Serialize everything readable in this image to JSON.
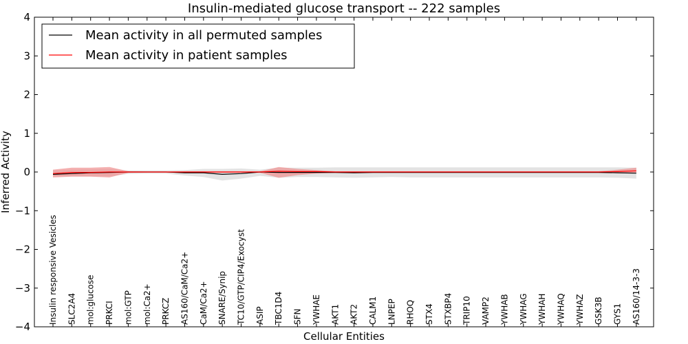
{
  "chart_data": {
    "type": "line",
    "title": "Insulin-mediated glucose transport -- 222 samples",
    "xlabel": "Cellular Entities",
    "ylabel": "Inferred Activity",
    "ylim": [
      -4,
      4
    ],
    "yticks": [
      -4,
      -3,
      -2,
      -1,
      0,
      1,
      2,
      3,
      4
    ],
    "ytick_labels": [
      "−4",
      "−3",
      "−2",
      "−1",
      "0",
      "1",
      "2",
      "3",
      "4"
    ],
    "grid": false,
    "legend_position": "top-left",
    "categories": [
      "Insulin responsive Vesicles",
      "SLC2A4",
      "mol:glucose",
      "PRKCI",
      "mol:GTP",
      "mol:Ca2+",
      "PRKCZ",
      "AS160/CaM/Ca2+",
      "CaM/Ca2+",
      "SNARE/Synip",
      "TC10/GTP/CIP4/Exocyst",
      "ASIP",
      "TBC1D4",
      "SFN",
      "YWHAE",
      "AKT1",
      "AKT2",
      "CALM1",
      "LNPEP",
      "RHOQ",
      "STX4",
      "STXBP4",
      "TRIP10",
      "VAMP2",
      "YWHAB",
      "YWHAG",
      "YWHAH",
      "YWHAQ",
      "YWHAZ",
      "GSK3B",
      "GYS1",
      "AS160/14-3-3"
    ],
    "series": [
      {
        "name": "Mean activity in all permuted samples",
        "color": "#000000",
        "band_color": "#b0b0b0",
        "values": [
          -0.06,
          -0.04,
          -0.02,
          -0.01,
          0.0,
          0.0,
          0.0,
          -0.02,
          -0.02,
          -0.06,
          -0.04,
          0.0,
          -0.01,
          -0.01,
          -0.01,
          -0.01,
          -0.02,
          -0.01,
          -0.01,
          -0.01,
          -0.01,
          -0.01,
          -0.01,
          -0.01,
          -0.01,
          -0.01,
          -0.01,
          -0.01,
          -0.01,
          -0.01,
          -0.02,
          -0.03
        ],
        "lower": [
          -0.11,
          -0.11,
          -0.11,
          -0.11,
          -0.05,
          -0.04,
          -0.04,
          -0.09,
          -0.13,
          -0.22,
          -0.17,
          -0.1,
          -0.15,
          -0.13,
          -0.13,
          -0.14,
          -0.15,
          -0.14,
          -0.13,
          -0.14,
          -0.14,
          -0.14,
          -0.14,
          -0.14,
          -0.14,
          -0.14,
          -0.14,
          -0.14,
          -0.14,
          -0.14,
          -0.15,
          -0.17
        ],
        "upper": [
          0.04,
          0.06,
          0.07,
          0.08,
          0.04,
          0.04,
          0.04,
          0.05,
          0.08,
          0.08,
          0.09,
          0.06,
          0.11,
          0.11,
          0.11,
          0.12,
          0.12,
          0.12,
          0.12,
          0.12,
          0.12,
          0.12,
          0.12,
          0.12,
          0.12,
          0.12,
          0.12,
          0.12,
          0.12,
          0.12,
          0.12,
          0.11
        ]
      },
      {
        "name": "Mean activity in patient samples",
        "color": "#ff0000",
        "band_color": "#ef8f8f",
        "values": [
          -0.04,
          -0.01,
          -0.01,
          0.0,
          0.0,
          0.0,
          0.0,
          0.0,
          0.0,
          0.0,
          0.0,
          0.0,
          0.02,
          0.01,
          0.01,
          0.0,
          0.0,
          0.0,
          0.0,
          0.0,
          0.0,
          0.0,
          0.0,
          0.0,
          0.0,
          0.0,
          0.0,
          0.0,
          0.0,
          0.0,
          0.01,
          0.03
        ],
        "lower": [
          -0.14,
          -0.12,
          -0.12,
          -0.14,
          -0.02,
          -0.01,
          -0.01,
          -0.02,
          -0.02,
          -0.02,
          -0.02,
          -0.02,
          -0.15,
          -0.08,
          -0.04,
          -0.02,
          -0.02,
          -0.01,
          -0.01,
          -0.01,
          -0.01,
          -0.01,
          -0.01,
          -0.01,
          -0.01,
          -0.01,
          -0.01,
          -0.01,
          -0.01,
          -0.01,
          -0.01,
          -0.02
        ],
        "upper": [
          0.06,
          0.11,
          0.11,
          0.13,
          0.02,
          0.01,
          0.01,
          0.02,
          0.02,
          0.02,
          0.02,
          0.02,
          0.13,
          0.08,
          0.05,
          0.02,
          0.02,
          0.02,
          0.02,
          0.02,
          0.02,
          0.02,
          0.02,
          0.02,
          0.02,
          0.02,
          0.02,
          0.02,
          0.02,
          0.02,
          0.06,
          0.11
        ]
      }
    ]
  }
}
